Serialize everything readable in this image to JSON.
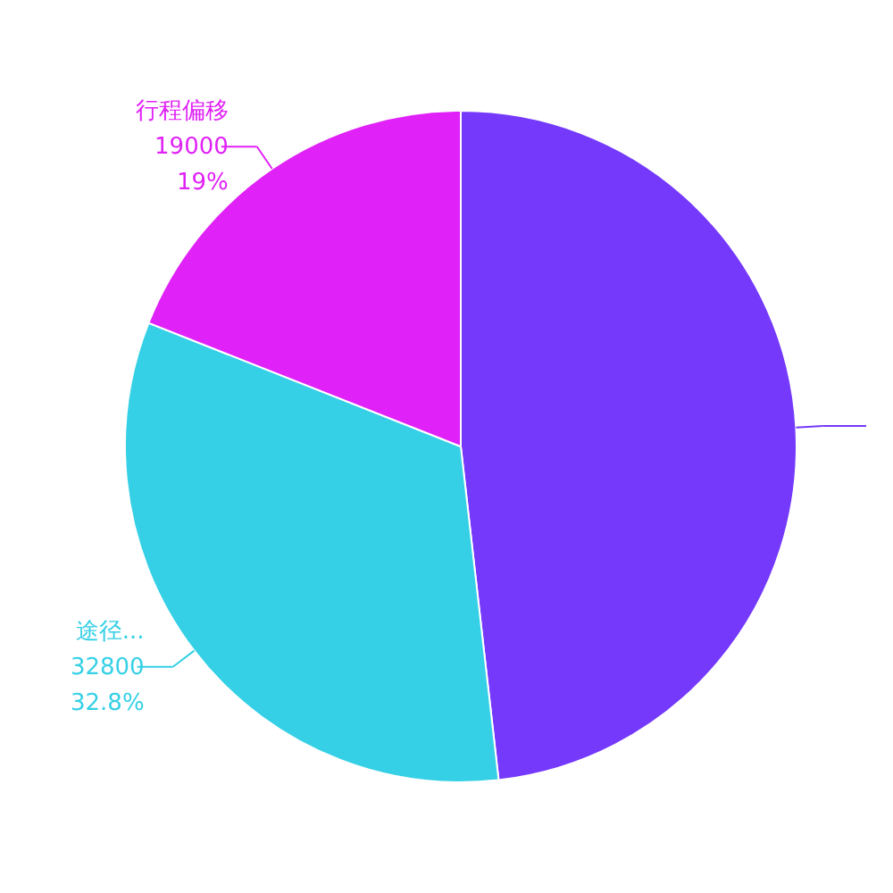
{
  "chart_data": {
    "type": "pie",
    "categories": [
      null,
      "途径...",
      "行程偏移"
    ],
    "values": [
      48200,
      32800,
      19000
    ],
    "colors": [
      "#7439fb",
      "#35d0e6",
      "#e021f7"
    ],
    "value_labels": [
      null,
      "32800\n32.8%",
      "19000\n19%"
    ]
  }
}
